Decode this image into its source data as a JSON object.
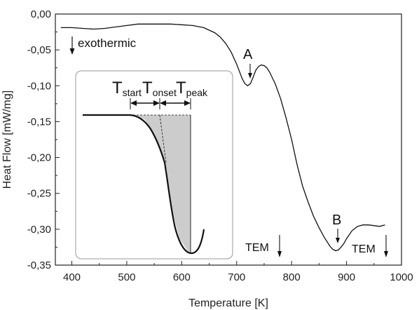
{
  "chart_data": {
    "type": "line",
    "title": "",
    "xlabel": "Temperature [K]",
    "ylabel": "Heat Flow [mW/mg]",
    "xlim": [
      370,
      1000
    ],
    "ylim": [
      -0.35,
      0.0
    ],
    "xticks": [
      400,
      500,
      600,
      700,
      800,
      900,
      1000
    ],
    "yticks": [
      0.0,
      -0.05,
      -0.1,
      -0.15,
      -0.2,
      -0.25,
      -0.3,
      -0.35
    ],
    "ytick_labels": [
      "0,00",
      "-0,05",
      "-0,10",
      "-0,15",
      "-0,20",
      "-0,25",
      "-0,30",
      "-0,35"
    ],
    "grid": false,
    "series": [
      {
        "x": [
          380,
          400,
          420,
          440,
          460,
          480,
          500,
          520,
          540,
          560,
          580,
          600,
          620,
          640,
          660,
          670,
          680,
          690,
          700,
          705,
          710,
          715,
          720,
          725,
          730,
          735,
          740,
          745,
          750,
          755,
          760,
          770,
          780,
          790,
          800,
          810,
          820,
          830,
          840,
          850,
          860,
          870,
          875,
          880,
          885,
          890,
          895,
          900,
          910,
          920,
          930,
          940,
          950,
          960,
          970
        ],
        "y": [
          -0.019,
          -0.019,
          -0.02,
          -0.021,
          -0.02,
          -0.018,
          -0.016,
          -0.014,
          -0.014,
          -0.014,
          -0.014,
          -0.015,
          -0.016,
          -0.019,
          -0.026,
          -0.032,
          -0.041,
          -0.053,
          -0.07,
          -0.08,
          -0.09,
          -0.097,
          -0.1,
          -0.097,
          -0.088,
          -0.078,
          -0.073,
          -0.071,
          -0.072,
          -0.075,
          -0.081,
          -0.097,
          -0.118,
          -0.145,
          -0.175,
          -0.21,
          -0.24,
          -0.262,
          -0.282,
          -0.298,
          -0.312,
          -0.324,
          -0.328,
          -0.33,
          -0.329,
          -0.325,
          -0.32,
          -0.313,
          -0.302,
          -0.296,
          -0.294,
          -0.294,
          -0.295,
          -0.296,
          -0.294
        ]
      }
    ],
    "annotations": {
      "exothermic": "exothermic",
      "peak_a": "A",
      "peak_b": "B",
      "tem_1": "TEM",
      "tem_2": "TEM"
    },
    "inset": {
      "t_start": "T",
      "t_start_sub": "start",
      "t_onset": "T",
      "t_onset_sub": "onset",
      "t_peak": "T",
      "t_peak_sub": "peak"
    }
  }
}
